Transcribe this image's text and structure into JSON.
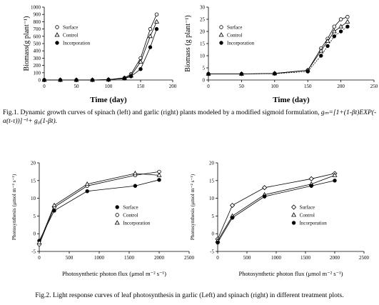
{
  "chart_data": [
    {
      "type": "scatter-line",
      "xlabel": "Time (day)",
      "ylabel": "Biomass(g plant⁻¹)",
      "xlim": [
        0,
        200
      ],
      "xticks": [
        0,
        50,
        100,
        150,
        200
      ],
      "ylim": [
        0,
        1000
      ],
      "yticks": [
        0,
        100,
        200,
        300,
        400,
        500,
        600,
        700,
        800,
        900,
        1000
      ],
      "legend": "upper left",
      "x": [
        0,
        25,
        50,
        75,
        100,
        125,
        135,
        150,
        165,
        175
      ],
      "series": [
        {
          "name": "Surface",
          "color": "#000",
          "marker": "circle-open",
          "values": [
            0,
            0,
            0,
            0,
            5,
            30,
            80,
            300,
            700,
            900
          ]
        },
        {
          "name": "Control",
          "color": "#000",
          "marker": "triangle-open",
          "values": [
            0,
            0,
            0,
            0,
            5,
            25,
            60,
            250,
            600,
            800
          ]
        },
        {
          "name": "Incorporation",
          "color": "#000",
          "marker": "circle-filled",
          "values": [
            0,
            0,
            0,
            0,
            5,
            20,
            50,
            150,
            450,
            700
          ]
        }
      ]
    },
    {
      "type": "scatter-line",
      "xlabel": "Time (day)",
      "ylabel": "Biomass (g plant⁻¹)",
      "xlim": [
        0,
        250
      ],
      "xticks": [
        0,
        50,
        100,
        150,
        200,
        250
      ],
      "ylim": [
        0,
        30
      ],
      "yticks": [
        0,
        5,
        10,
        15,
        20,
        25,
        30
      ],
      "legend": "upper left",
      "x": [
        0,
        50,
        100,
        150,
        170,
        180,
        190,
        200,
        210
      ],
      "series": [
        {
          "name": "Surface",
          "color": "#000",
          "marker": "circle-open",
          "values": [
            2.5,
            2.5,
            2.7,
            4,
            13,
            17,
            22,
            25,
            26
          ]
        },
        {
          "name": "Control",
          "color": "#000",
          "marker": "triangle-open",
          "values": [
            2.5,
            2.5,
            2.7,
            4,
            12,
            16,
            20,
            22,
            24
          ]
        },
        {
          "name": "Incorporation",
          "color": "#000",
          "marker": "circle-filled",
          "values": [
            2.5,
            2.5,
            2.6,
            3.5,
            10,
            14,
            18,
            20,
            22
          ]
        }
      ]
    },
    {
      "type": "scatter-line",
      "xlabel": "Photosynthetic photon flux (μmol m⁻² s⁻¹)",
      "ylabel": "Photosynthesis (μmol m⁻² s⁻¹)",
      "xlim": [
        0,
        2500
      ],
      "xticks": [
        0,
        500,
        1000,
        1500,
        2000,
        2500
      ],
      "ylim": [
        -5,
        20
      ],
      "yticks": [
        -5,
        0,
        5,
        10,
        15,
        20
      ],
      "legend": "lower right",
      "x": [
        0,
        250,
        800,
        1600,
        2000
      ],
      "series": [
        {
          "name": "Surface",
          "color": "#000",
          "marker": "circle-filled",
          "values": [
            -2,
            6.5,
            12,
            13.5,
            15.2
          ]
        },
        {
          "name": "Control",
          "color": "#000",
          "marker": "circle-open",
          "values": [
            -3,
            7.5,
            13.5,
            16.5,
            17.5
          ]
        },
        {
          "name": "Incorporation",
          "color": "#000",
          "marker": "triangle-open",
          "values": [
            -2.5,
            8,
            14,
            17,
            16.5
          ]
        }
      ]
    },
    {
      "type": "scatter-line",
      "xlabel": "Photosynthetic photon flux (μmol m⁻² s⁻¹)",
      "ylabel": "Photosynthesis (μmol m⁻² s⁻¹)",
      "xlim": [
        0,
        2500
      ],
      "xticks": [
        0,
        500,
        1000,
        1500,
        2000,
        2500
      ],
      "ylim": [
        -5,
        20
      ],
      "yticks": [
        -5,
        0,
        5,
        10,
        15,
        20
      ],
      "legend": "lower right",
      "x": [
        0,
        250,
        800,
        1600,
        2000
      ],
      "series": [
        {
          "name": "Surface",
          "color": "#000",
          "marker": "diamond-open",
          "values": [
            -1.5,
            8,
            13,
            15.5,
            17
          ]
        },
        {
          "name": "Control",
          "color": "#000",
          "marker": "triangle-open",
          "values": [
            -2,
            5,
            11,
            14,
            16.5
          ]
        },
        {
          "name": "Incorporation",
          "color": "#000",
          "marker": "circle-filled",
          "values": [
            -2.5,
            4.5,
            10.5,
            13.5,
            15
          ]
        }
      ]
    }
  ],
  "captions": [
    {
      "text": "Fig.1. Dynamic growth curves of spinach (left) and garlic (right) plants modeled by a modified sigmoid formulation,",
      "formula": "gₘ=[1+(1-βt)EXP(-α(t-τ))]⁻¹+ g₀(1-βt)."
    },
    {
      "text": "Fig.2. Light response curves of leaf photosynthesis in garlic (Left) and spinach (right) in different treatment plots."
    }
  ]
}
